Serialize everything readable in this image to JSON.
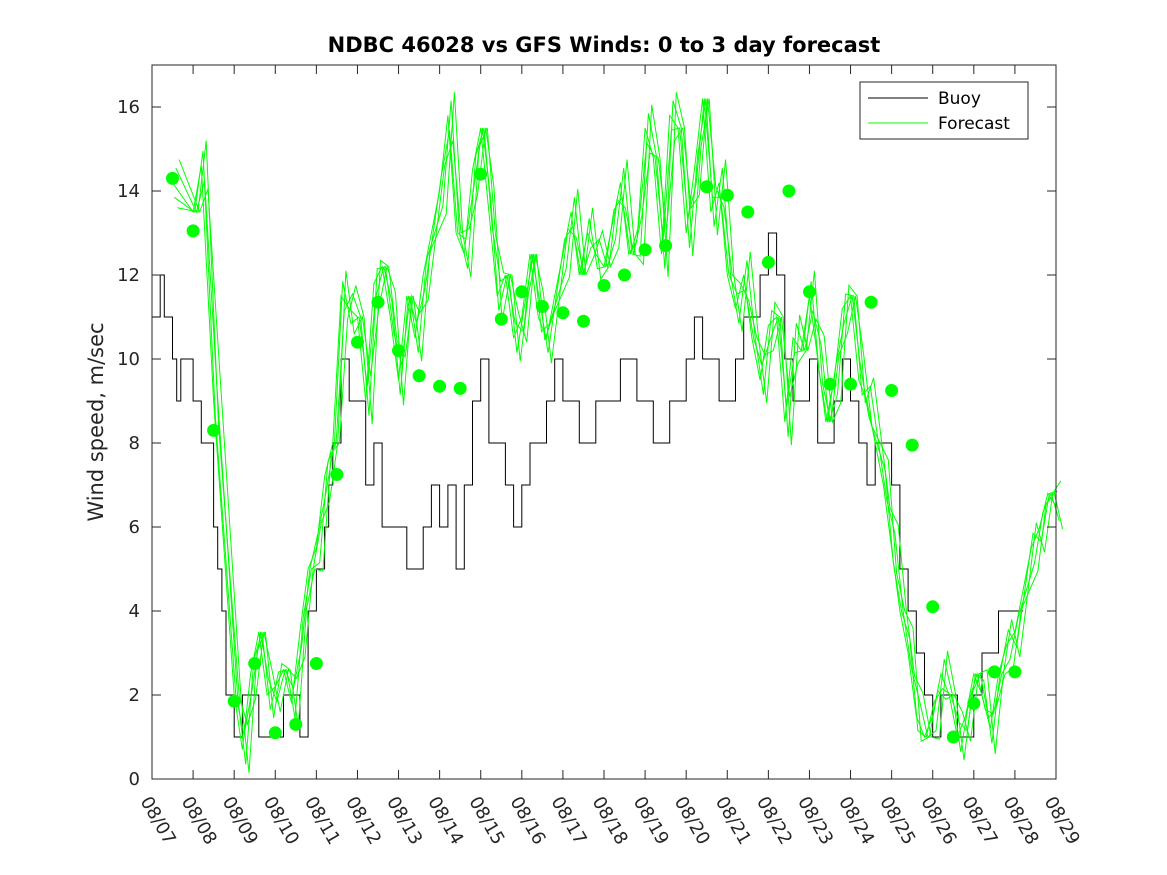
{
  "chart_data": {
    "type": "line",
    "title": "NDBC 46028 vs GFS Winds: 0 to 3 day forecast",
    "xlabel": "",
    "ylabel": "Wind speed, m/sec",
    "xlim": [
      0,
      22
    ],
    "ylim": [
      0,
      17
    ],
    "categories": [
      "08/07",
      "08/08",
      "08/09",
      "08/10",
      "08/11",
      "08/12",
      "08/13",
      "08/14",
      "08/15",
      "08/16",
      "08/17",
      "08/18",
      "08/19",
      "08/20",
      "08/21",
      "08/22",
      "08/23",
      "08/24",
      "08/25",
      "08/26",
      "08/27",
      "08/28",
      "08/29"
    ],
    "yticks": [
      0,
      2,
      4,
      6,
      8,
      10,
      12,
      14,
      16
    ],
    "legend": {
      "position": "top-right",
      "entries": [
        "Buoy",
        "Forecast"
      ]
    },
    "colors": {
      "buoy": "#000000",
      "forecast": "#00ff00"
    },
    "series": [
      {
        "name": "Buoy",
        "kind": "step",
        "x": [
          0,
          0.2,
          0.3,
          0.5,
          0.6,
          0.7,
          1.0,
          1.2,
          1.4,
          1.5,
          1.6,
          1.7,
          1.8,
          2.0,
          2.2,
          2.4,
          2.6,
          2.8,
          3.0,
          3.2,
          3.4,
          3.6,
          3.8,
          4.0,
          4.2,
          4.3,
          4.4,
          4.6,
          4.8,
          5.0,
          5.2,
          5.4,
          5.6,
          5.8,
          6.0,
          6.2,
          6.4,
          6.6,
          6.8,
          7.0,
          7.2,
          7.4,
          7.6,
          7.8,
          8.0,
          8.2,
          8.4,
          8.6,
          8.8,
          9.0,
          9.2,
          9.4,
          9.6,
          9.8,
          10.0,
          10.2,
          10.4,
          10.6,
          10.8,
          11.0,
          11.2,
          11.4,
          11.6,
          11.8,
          12.0,
          12.2,
          12.4,
          12.6,
          12.8,
          13.0,
          13.2,
          13.4,
          13.6,
          13.8,
          14.0,
          14.2,
          14.4,
          14.6,
          14.8,
          15.0,
          15.2,
          15.4,
          15.6,
          15.8,
          16.0,
          16.2,
          16.4,
          16.6,
          16.8,
          17.0,
          17.2,
          17.4,
          17.6,
          17.8,
          18.0,
          18.2,
          18.4,
          18.6,
          18.8,
          19.0,
          19.2,
          19.4,
          19.6,
          19.8,
          20.0,
          20.2,
          20.4,
          20.6,
          20.8,
          21.0,
          21.2
        ],
        "y": [
          11,
          12,
          11,
          10,
          9,
          10,
          9,
          8,
          8,
          6,
          5,
          4,
          2,
          1,
          2,
          2,
          1,
          1,
          1,
          2,
          2,
          1,
          4,
          5,
          6,
          7,
          8,
          10,
          9,
          9,
          7,
          8,
          6,
          6,
          6,
          5,
          5,
          6,
          7,
          6,
          7,
          5,
          7,
          9,
          10,
          8,
          8,
          7,
          6,
          7,
          8,
          8,
          9,
          10,
          9,
          9,
          8,
          8,
          9,
          9,
          9,
          10,
          10,
          9,
          9,
          8,
          8,
          9,
          9,
          10,
          11,
          10,
          10,
          9,
          9,
          10,
          11,
          11,
          12,
          13,
          12,
          10,
          9,
          9,
          10,
          8,
          8,
          9,
          10,
          9,
          8,
          7,
          8,
          8,
          7,
          5,
          4,
          3,
          2,
          1,
          2,
          2,
          1,
          1,
          2,
          3,
          3,
          4,
          4,
          4,
          4
        ]
      },
      {
        "name": "Forecast",
        "kind": "line",
        "x": [
          0.5,
          1.0,
          1.2,
          1.5,
          2.0,
          2.2,
          2.4,
          2.6,
          2.8,
          3.0,
          3.2,
          3.4,
          3.6,
          3.8,
          4.0,
          4.2,
          4.4,
          4.6,
          4.8,
          5.0,
          5.2,
          5.4,
          5.6,
          5.8,
          6.0,
          6.2,
          6.4,
          6.6,
          6.8,
          7.0,
          7.2,
          7.4,
          7.6,
          7.8,
          8.0,
          8.2,
          8.4,
          8.6,
          8.8,
          9.0,
          9.2,
          9.4,
          9.6,
          9.8,
          10.0,
          10.2,
          10.4,
          10.6,
          10.8,
          11.0,
          11.2,
          11.4,
          11.6,
          11.8,
          12.0,
          12.2,
          12.4,
          12.6,
          12.8,
          13.0,
          13.2,
          13.4,
          13.6,
          13.8,
          14.0,
          14.2,
          14.4,
          14.6,
          14.8,
          15.0,
          15.2,
          15.4,
          15.6,
          15.8,
          16.0,
          16.2,
          16.4,
          16.6,
          16.8,
          17.0,
          17.2,
          17.4,
          17.6,
          17.8,
          18.0,
          18.2,
          18.4,
          18.6,
          18.8,
          19.0,
          19.2,
          19.4,
          19.6,
          19.8,
          20.0,
          20.2,
          20.4,
          20.6,
          20.8,
          21.0,
          21.2,
          21.4,
          21.6,
          21.8,
          22.0
        ],
        "y": [
          14.2,
          13.5,
          14.6,
          9.0,
          2.0,
          0.7,
          2.5,
          3.5,
          2.0,
          2.2,
          2.6,
          1.8,
          3.5,
          5.0,
          5.5,
          7.2,
          8.0,
          11.5,
          11.2,
          11.0,
          9.0,
          11.8,
          12.2,
          11.0,
          9.5,
          11.5,
          10.5,
          12.0,
          13.0,
          14.0,
          15.8,
          13.0,
          12.5,
          14.5,
          15.5,
          13.5,
          11.5,
          12.0,
          10.5,
          11.0,
          12.5,
          11.0,
          10.5,
          11.5,
          12.5,
          13.5,
          12.0,
          13.0,
          12.5,
          12.2,
          13.2,
          14.2,
          12.5,
          12.8,
          15.5,
          14.8,
          12.5,
          15.8,
          15.5,
          13.0,
          14.5,
          16.2,
          13.5,
          14.2,
          12.0,
          11.2,
          12.0,
          10.5,
          9.5,
          10.8,
          11.0,
          8.5,
          10.5,
          10.2,
          11.5,
          10.0,
          8.5,
          9.5,
          11.2,
          11.5,
          9.5,
          9.0,
          8.0,
          7.0,
          5.5,
          4.0,
          3.0,
          1.5,
          1.0,
          1.5,
          2.5,
          2.0,
          1.0,
          1.5,
          2.5,
          2.0,
          1.2,
          2.5,
          3.2,
          3.5,
          4.5,
          5.5,
          6.0,
          6.8,
          6.5
        ]
      },
      {
        "name": "Forecast points",
        "kind": "markers",
        "x": [
          0.5,
          1.0,
          1.5,
          2.0,
          2.5,
          3.0,
          3.5,
          4.0,
          4.5,
          5.0,
          5.5,
          6.0,
          6.5,
          7.0,
          7.5,
          8.0,
          8.5,
          9.0,
          9.5,
          10.0,
          10.5,
          11.0,
          11.5,
          12.0,
          12.5,
          13.5,
          14.0,
          14.5,
          15.0,
          15.5,
          16.0,
          16.5,
          17.0,
          17.5,
          18.0,
          18.5,
          19.0,
          19.5,
          20.0,
          20.5,
          21.0
        ],
        "y": [
          14.3,
          13.05,
          8.3,
          1.85,
          2.75,
          1.1,
          1.3,
          2.75,
          7.25,
          10.4,
          11.35,
          10.2,
          9.6,
          9.35,
          9.3,
          14.4,
          10.95,
          11.6,
          11.25,
          11.1,
          10.9,
          11.75,
          12.0,
          12.6,
          12.7,
          14.1,
          13.9,
          13.5,
          12.3,
          14.0,
          11.6,
          9.4,
          9.4,
          11.35,
          9.25,
          7.95,
          4.1,
          1.0,
          1.8,
          2.55,
          2.55
        ]
      }
    ]
  }
}
